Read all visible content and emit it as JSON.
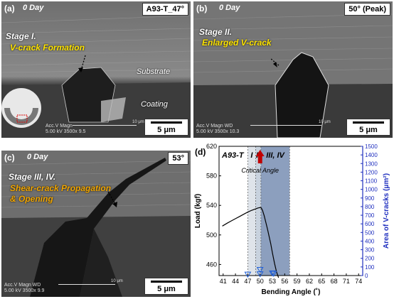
{
  "panels": [
    {
      "tag": "(a)",
      "day": "0 Day",
      "angle": "A93-T_47°",
      "stage": "Stage I.",
      "caption": "V-crack Formation",
      "labels": [
        "Substrate",
        "Coating"
      ],
      "meta": "",
      "scale": "5 μm",
      "mag": "10 μm",
      "caption_color": "#ffe400"
    },
    {
      "tag": "(b)",
      "day": "0 Day",
      "angle": "50° (Peak)",
      "stage": "Stage II.",
      "caption": "Enlarged V-crack",
      "labels": [],
      "meta": [
        "Acc.V  Magn   WD",
        "5.00 kV 3500x  10.3"
      ],
      "scale": "5 μm",
      "mag": "10 μm",
      "caption_color": "#ffe400"
    },
    {
      "tag": "(c)",
      "day": "0 Day",
      "angle": "53°",
      "stage": "Stage III, IV.",
      "caption": "Shear-crack Propagation",
      "caption2": "& Opening",
      "labels": [],
      "meta": [
        "Acc.V  Magn   WD",
        "5.00 kV 3500x  9.9"
      ],
      "scale": "5 μm",
      "mag": "10 μm",
      "caption_color": "#f0a500"
    }
  ],
  "panel_a_meta": [
    "Acc.V  Magn",
    "5.00 kV 3500x  9.5"
  ],
  "chart_data": {
    "type": "line",
    "panel_tag": "(d)",
    "xlabel": "Bending Angle (˚)",
    "ylabel": "Load (kgf)",
    "ylabel2": "Area of V-cracks (μm²)",
    "xticks": [
      41,
      44,
      47,
      50,
      53,
      56,
      59,
      62,
      65,
      68,
      71,
      74
    ],
    "xlim": [
      40,
      75
    ],
    "ylim": [
      445,
      620
    ],
    "yticks": [
      460,
      500,
      540,
      580,
      620
    ],
    "y2lim": [
      0,
      1500
    ],
    "y2ticks": [
      0,
      100,
      200,
      300,
      400,
      500,
      600,
      700,
      800,
      900,
      1000,
      1100,
      1200,
      1300,
      1400,
      1500
    ],
    "regions": [
      {
        "label": "I",
        "x0": 47,
        "x1": 48.9,
        "color": "#dfe4ea"
      },
      {
        "label": "II",
        "x0": 48.9,
        "x1": 50.2,
        "color": "#c8d2de"
      },
      {
        "label": "III, IV",
        "x0": 50.2,
        "x1": 57.2,
        "color": "#8c9fbe"
      }
    ],
    "sample_label": "A93-T",
    "annotation": "Critical Angle",
    "critical_x": 50,
    "load_series": {
      "x": [
        40.8,
        42,
        43,
        44,
        45,
        46,
        47,
        48,
        49,
        49.5,
        50,
        50.3,
        50.6,
        51,
        51.4,
        51.8,
        52.2,
        52.6,
        53,
        53.5,
        54,
        54.5
      ],
      "y": [
        512,
        516,
        519,
        522,
        525,
        528,
        531,
        533.5,
        535.5,
        536.5,
        537,
        536.5,
        533,
        526,
        517,
        508,
        498,
        488,
        476,
        462,
        450,
        442
      ]
    },
    "area_points": [
      {
        "x": 47,
        "y": 15
      },
      {
        "x": 50,
        "y": 70
      },
      {
        "x": 50,
        "y": 20
      },
      {
        "x": 53,
        "y": 30
      },
      {
        "x": 53.3,
        "y": 25
      }
    ]
  }
}
